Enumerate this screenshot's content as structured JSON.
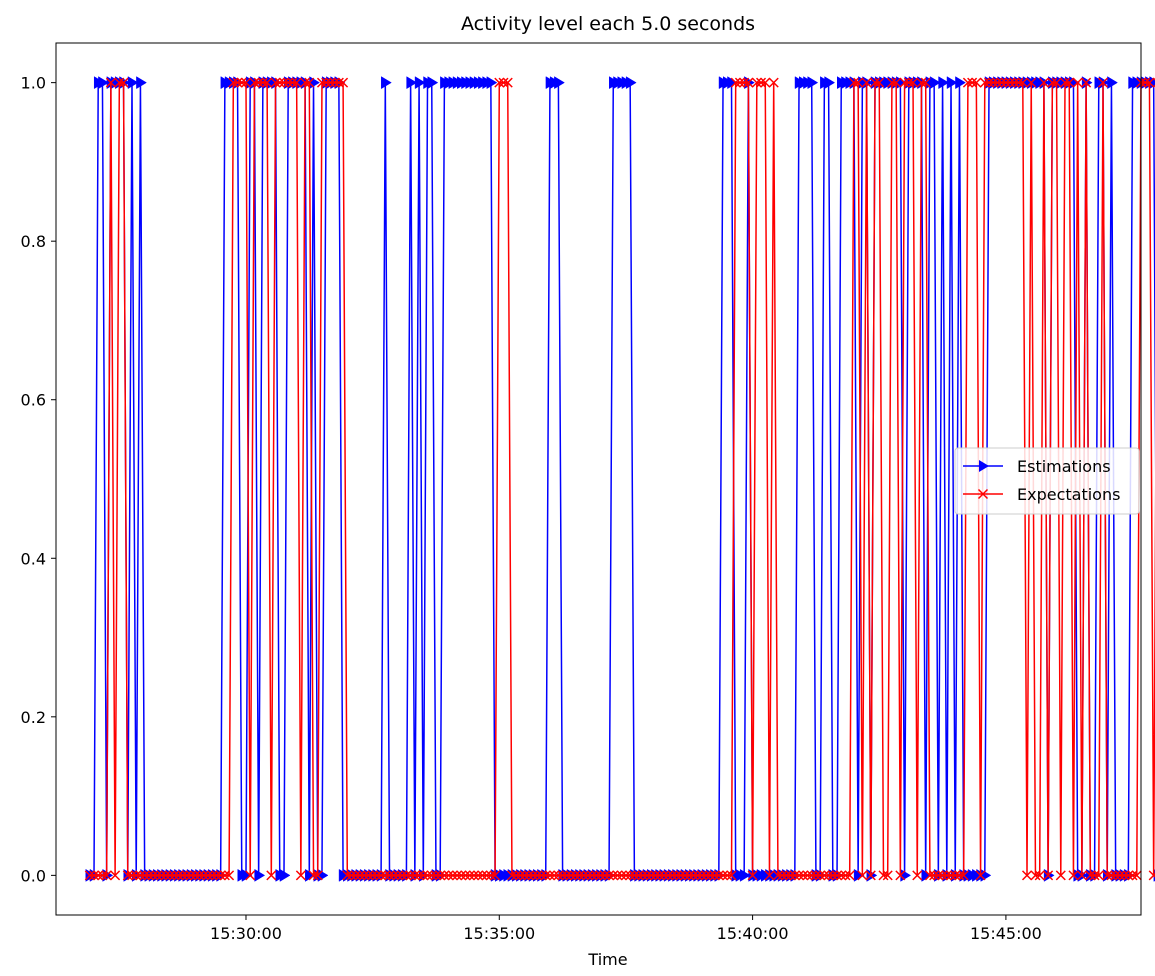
{
  "chart_data": {
    "type": "line",
    "title": "Activity level each 5.0 seconds",
    "xlabel": "Time",
    "ylabel": "",
    "x_start": "15:26:55",
    "x_step_seconds": 5,
    "xlim": [
      "15:26:15",
      "15:47:40"
    ],
    "ylim": [
      -0.05,
      1.05
    ],
    "yticks": [
      "0.0",
      "0.2",
      "0.4",
      "0.6",
      "0.8",
      "1.0"
    ],
    "xticks": [
      "15:30:00",
      "15:35:00",
      "15:40:00",
      "15:45:00"
    ],
    "legend": "center-right",
    "grid": false,
    "series": [
      {
        "name": "Estimations",
        "color": "#0000ff",
        "marker": "triangle-right",
        "values": [
          0,
          0,
          1,
          1,
          0,
          1,
          1,
          1,
          1,
          0,
          1,
          0,
          1,
          0,
          0,
          0,
          0,
          0,
          0,
          0,
          0,
          0,
          0,
          0,
          0,
          0,
          0,
          0,
          0,
          0,
          0,
          0,
          1,
          1,
          1,
          1,
          0,
          0,
          1,
          1,
          0,
          1,
          1,
          1,
          1,
          0,
          0,
          1,
          1,
          1,
          1,
          1,
          0,
          1,
          0,
          0,
          1,
          1,
          1,
          1,
          0,
          0,
          0,
          0,
          0,
          0,
          0,
          0,
          0,
          0,
          1,
          0,
          0,
          0,
          0,
          0,
          1,
          0,
          1,
          0,
          1,
          1,
          0,
          0,
          1,
          1,
          1,
          1,
          1,
          1,
          1,
          1,
          1,
          1,
          1,
          1,
          0,
          0,
          0,
          0,
          0,
          0,
          0,
          0,
          0,
          0,
          0,
          0,
          0,
          1,
          1,
          1,
          0,
          0,
          0,
          0,
          0,
          0,
          0,
          0,
          0,
          0,
          0,
          0,
          1,
          1,
          1,
          1,
          1,
          0,
          0,
          0,
          0,
          0,
          0,
          0,
          0,
          0,
          0,
          0,
          0,
          0,
          0,
          0,
          0,
          0,
          0,
          0,
          0,
          0,
          1,
          1,
          1,
          0,
          0,
          0,
          1,
          0,
          0,
          0,
          0,
          0,
          0,
          0,
          0,
          0,
          0,
          0,
          1,
          1,
          1,
          1,
          0,
          0,
          1,
          1,
          0,
          0,
          1,
          1,
          1,
          1,
          0,
          1,
          1,
          0,
          1,
          1,
          1,
          1,
          1,
          1,
          1,
          0,
          1,
          1,
          1,
          1,
          0,
          1,
          1,
          0,
          1,
          0,
          1,
          0,
          1,
          0,
          0,
          0,
          0,
          0,
          0,
          1,
          1,
          1,
          1,
          1,
          1,
          1,
          1,
          1,
          1,
          1,
          1,
          1,
          1,
          0,
          1,
          1,
          1,
          1,
          1,
          1,
          0,
          0,
          1,
          0,
          0,
          1,
          1,
          0,
          1,
          0,
          0,
          0,
          0,
          1,
          1,
          1,
          1,
          1,
          1,
          0,
          0,
          1,
          1,
          1,
          0,
          1,
          0,
          0,
          1,
          0,
          0,
          1,
          1,
          1,
          1,
          1,
          1,
          1,
          1,
          1,
          1,
          1,
          1,
          1,
          1,
          1,
          1,
          1,
          1,
          1,
          1,
          1,
          0,
          0,
          1,
          1,
          1,
          1,
          1,
          0,
          0,
          0,
          1,
          1,
          1,
          1,
          0,
          0,
          1,
          0,
          1,
          1,
          1,
          1
        ]
      },
      {
        "name": "Expectations",
        "color": "#ff0000",
        "marker": "x",
        "values": [
          0,
          0,
          0,
          0,
          0,
          1,
          0,
          1,
          1,
          0,
          0,
          0,
          0,
          0,
          0,
          0,
          0,
          0,
          0,
          0,
          0,
          0,
          0,
          0,
          0,
          0,
          0,
          0,
          0,
          0,
          0,
          0,
          0,
          0,
          1,
          1,
          1,
          1,
          0,
          1,
          1,
          1,
          1,
          0,
          1,
          1,
          1,
          1,
          1,
          1,
          0,
          1,
          1,
          0,
          0,
          1,
          1,
          1,
          1,
          1,
          1,
          0,
          0,
          0,
          0,
          0,
          0,
          0,
          0,
          0,
          0,
          0,
          0,
          0,
          0,
          0,
          0,
          0,
          0,
          0,
          0,
          0,
          0,
          0,
          0,
          0,
          0,
          0,
          0,
          0,
          0,
          0,
          0,
          0,
          0,
          0,
          0,
          1,
          1,
          1,
          0,
          0,
          0,
          0,
          0,
          0,
          0,
          0,
          0,
          0,
          0,
          0,
          0,
          0,
          0,
          0,
          0,
          0,
          0,
          0,
          0,
          0,
          0,
          0,
          0,
          0,
          0,
          0,
          0,
          0,
          0,
          0,
          0,
          0,
          0,
          0,
          0,
          0,
          0,
          0,
          0,
          0,
          0,
          0,
          0,
          0,
          0,
          0,
          0,
          0,
          0,
          0,
          0,
          1,
          1,
          1,
          1,
          0,
          1,
          1,
          1,
          0,
          1,
          0,
          0,
          0,
          0,
          0,
          0,
          0,
          0,
          0,
          0,
          0,
          0,
          0,
          0,
          0,
          0,
          0,
          0,
          1,
          1,
          0,
          1,
          0,
          1,
          1,
          0,
          0,
          1,
          1,
          0,
          1,
          1,
          1,
          0,
          1,
          1,
          0,
          0,
          0,
          0,
          0,
          0,
          0,
          0,
          0,
          1,
          1,
          1,
          0,
          1,
          1,
          1,
          1,
          1,
          1,
          1,
          1,
          1,
          1,
          0,
          1,
          0,
          0,
          1,
          0,
          1,
          1,
          0,
          1,
          1,
          0,
          1,
          0,
          1,
          0,
          0,
          0,
          1,
          0,
          0,
          0,
          0,
          0,
          0,
          0,
          0,
          1,
          1,
          1,
          0,
          1,
          1,
          0,
          1,
          1,
          1,
          1,
          1,
          1,
          1,
          1,
          1,
          1,
          1,
          1,
          0,
          1,
          1,
          1,
          1,
          1,
          1,
          1,
          1,
          1,
          1,
          1,
          1,
          1,
          1,
          1,
          1,
          1,
          1,
          0,
          0,
          1,
          1,
          1,
          1,
          0,
          0,
          0,
          1,
          1,
          0,
          1,
          0,
          0,
          1,
          1,
          0,
          1,
          1,
          1,
          0
        ]
      }
    ]
  }
}
